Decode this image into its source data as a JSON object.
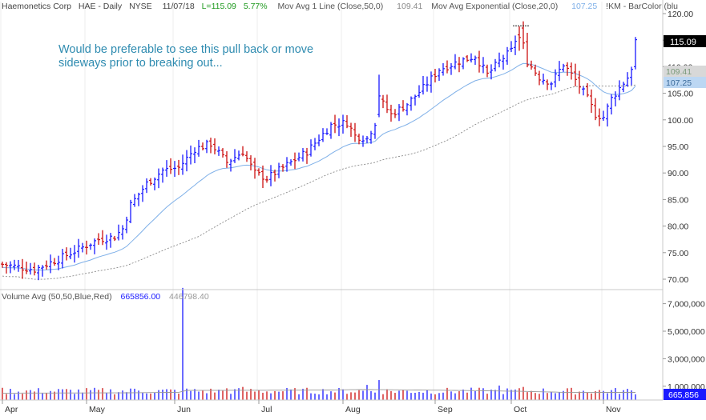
{
  "header": {
    "symbol_name": "Haemonetics Corp",
    "ticker": "HAE - Daily",
    "exchange": "NYSE",
    "date": "11/07/18",
    "last": "L=115.09",
    "change_pct": "5.77%",
    "ma1_label": "Mov Avg 1 Line (Close,50,0)",
    "ma1_value": "109.41",
    "ma2_label": "Mov Avg Exponential (Close,20,0)",
    "ma2_value": "107.25",
    "barcolor_label": "!KM - BarColor (blu"
  },
  "annotation": {
    "line1": "Would be preferable to see this pull back or move",
    "line2": "sideways prior to breaking out..."
  },
  "volume_header": {
    "label": "Volume Avg (50,50,Blue,Red)",
    "value1": "665856.00",
    "value2": "446798.40"
  },
  "price_axis": {
    "ticks": [
      "120.00",
      "115.00",
      "110.00",
      "105.00",
      "100.00",
      "95.00",
      "90.00",
      "85.00",
      "80.00",
      "75.00",
      "70.00"
    ],
    "tick_values": [
      120,
      115,
      110,
      105,
      100,
      95,
      90,
      85,
      80,
      75,
      70
    ],
    "last_badge": "115.09",
    "ma1_badge": "109.41",
    "ma2_badge": "107.25"
  },
  "volume_axis": {
    "ticks": [
      "7,000,000",
      "5,000,000",
      "3,000,000",
      "1,000,000"
    ],
    "tick_values": [
      7000000,
      5000000,
      3000000,
      1000000
    ],
    "last_badge": "665,856"
  },
  "x_axis": {
    "months": [
      "Apr",
      "May",
      "Jun",
      "Jul",
      "Aug",
      "Sep",
      "Oct",
      "Nov"
    ]
  },
  "colors": {
    "up": "#1a1aff",
    "down": "#cc1111",
    "ma1": "#8a8a8a",
    "ma2": "#7fb0e8",
    "annotation": "#2e8bb0",
    "last_green": "#1f9a1f",
    "volume_avg": "#9a9a9a"
  },
  "chart_data": {
    "type": "ohlc",
    "title": "Haemonetics Corp HAE - Daily NYSE",
    "ylim": [
      69,
      121
    ],
    "volume_ylim": [
      0,
      8500000
    ],
    "months": [
      {
        "label": "Apr",
        "start_index": 0
      },
      {
        "label": "May",
        "start_index": 21
      },
      {
        "label": "Jun",
        "start_index": 43
      },
      {
        "label": "Jul",
        "start_index": 64
      },
      {
        "label": "Aug",
        "start_index": 85
      },
      {
        "label": "Sep",
        "start_index": 108
      },
      {
        "label": "Oct",
        "start_index": 127
      },
      {
        "label": "Nov",
        "start_index": 150
      }
    ],
    "trend_anchors": [
      [
        0,
        72.8
      ],
      [
        8,
        71.8
      ],
      [
        14,
        73.8
      ],
      [
        20,
        76
      ],
      [
        24,
        77.5
      ],
      [
        28,
        78
      ],
      [
        30,
        79.5
      ],
      [
        32,
        84
      ],
      [
        36,
        88
      ],
      [
        40,
        90.5
      ],
      [
        44,
        91
      ],
      [
        48,
        94.5
      ],
      [
        52,
        95.5
      ],
      [
        56,
        92
      ],
      [
        60,
        94
      ],
      [
        63,
        90
      ],
      [
        66,
        89
      ],
      [
        70,
        91
      ],
      [
        76,
        94
      ],
      [
        82,
        99
      ],
      [
        86,
        99.5
      ],
      [
        88,
        97
      ],
      [
        91,
        96.5
      ],
      [
        93,
        99.5
      ],
      [
        94,
        104
      ],
      [
        97,
        101
      ],
      [
        101,
        103
      ],
      [
        105,
        106
      ],
      [
        109,
        109.5
      ],
      [
        114,
        111
      ],
      [
        118,
        112
      ],
      [
        121,
        108.5
      ],
      [
        124,
        111
      ],
      [
        127,
        113
      ],
      [
        129,
        117
      ],
      [
        131,
        111
      ],
      [
        134,
        108
      ],
      [
        137,
        107
      ],
      [
        140,
        110.5
      ],
      [
        143,
        107.5
      ],
      [
        146,
        104
      ],
      [
        148,
        101
      ],
      [
        150,
        100.5
      ],
      [
        152,
        104
      ],
      [
        154,
        106
      ],
      [
        156,
        108
      ],
      [
        157,
        113
      ],
      [
        158,
        115.1
      ]
    ],
    "volume": {
      "base": 400000,
      "spikes": [
        {
          "index": 45,
          "value": 8150000
        },
        {
          "index": 94,
          "value": 1450000
        },
        {
          "index": 91,
          "value": 1100000
        },
        {
          "index": 124,
          "value": 1050000
        },
        {
          "index": 130,
          "value": 950000
        },
        {
          "index": 60,
          "value": 950000
        },
        {
          "index": 56,
          "value": 850000
        },
        {
          "index": 33,
          "value": 820000
        }
      ],
      "avg": [
        [
          0,
          500000
        ],
        [
          30,
          520000
        ],
        [
          44,
          560000
        ],
        [
          46,
          700000
        ],
        [
          80,
          720000
        ],
        [
          90,
          760000
        ],
        [
          110,
          710000
        ],
        [
          128,
          640000
        ],
        [
          140,
          560000
        ],
        [
          158,
          550000
        ]
      ]
    }
  }
}
